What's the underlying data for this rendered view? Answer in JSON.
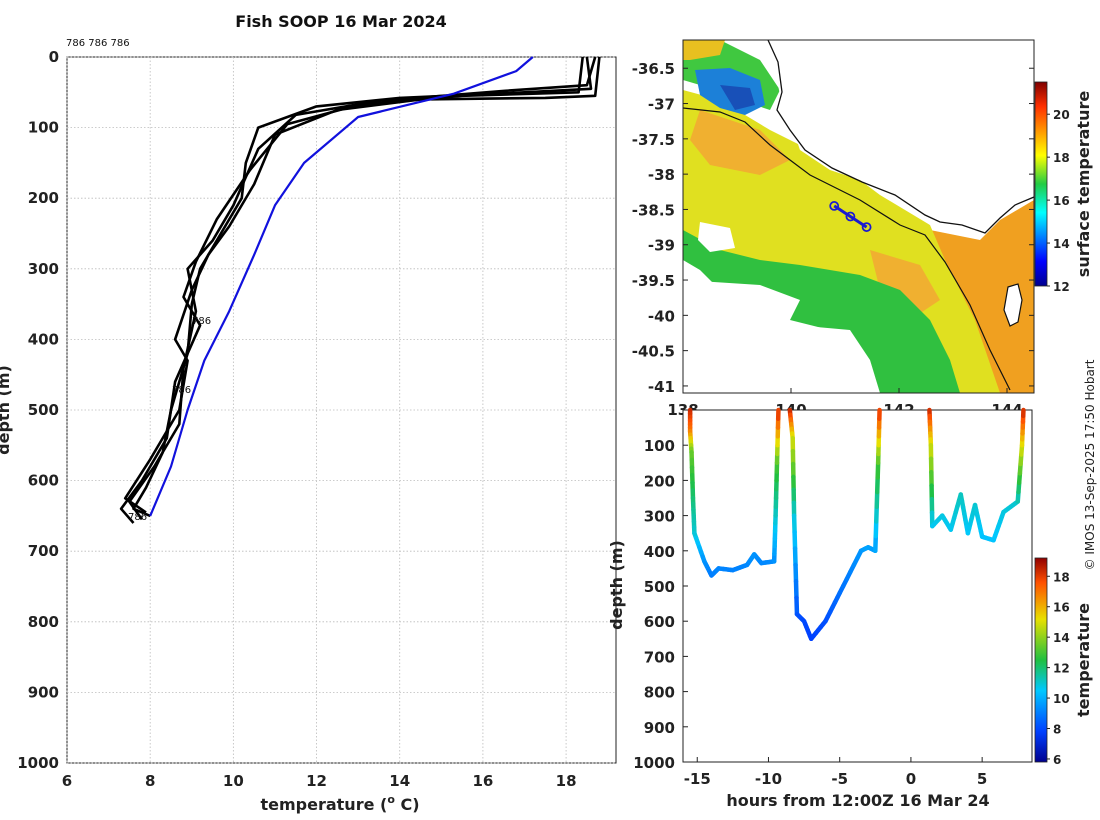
{
  "title": "Fish SOOP 16 Mar 2024",
  "watermark": "© IMOS 13-Sep-2025 17:50 Hobart",
  "chart_data": [
    {
      "id": "profile",
      "type": "line",
      "xlabel": "temperature (° C)",
      "xlabel_main": "temperature (",
      "xlabel_deg": "o",
      "xlabel_tail": " C)",
      "ylabel": "depth (m)",
      "xlim": [
        6,
        19.2
      ],
      "ylim": [
        0,
        1000
      ],
      "xticks": [
        "6",
        "8",
        "10",
        "12",
        "14",
        "16",
        "18"
      ],
      "yticks": [
        "0",
        "100",
        "200",
        "300",
        "400",
        "500",
        "600",
        "700",
        "800",
        "900",
        "1000"
      ],
      "top_label": "786 786 786",
      "profile_labels": [
        "786",
        "786",
        "786"
      ],
      "series": [
        {
          "name": "profile-1",
          "color": "#000000",
          "points": [
            [
              18.5,
              0
            ],
            [
              18.6,
              45
            ],
            [
              17.0,
              50
            ],
            [
              14.0,
              58
            ],
            [
              12.0,
              70
            ],
            [
              10.6,
              100
            ],
            [
              10.3,
              150
            ],
            [
              10.2,
              200
            ],
            [
              9.7,
              250
            ],
            [
              9.2,
              300
            ],
            [
              9.0,
              350
            ],
            [
              8.9,
              420
            ],
            [
              8.5,
              500
            ],
            [
              8.3,
              560
            ],
            [
              7.9,
              610
            ],
            [
              7.6,
              640
            ],
            [
              8.0,
              650
            ]
          ]
        },
        {
          "name": "profile-2",
          "color": "#000000",
          "points": [
            [
              18.7,
              0
            ],
            [
              18.5,
              40
            ],
            [
              16.5,
              48
            ],
            [
              13.5,
              62
            ],
            [
              11.5,
              82
            ],
            [
              10.6,
              130
            ],
            [
              10.0,
              210
            ],
            [
              9.5,
              260
            ],
            [
              8.9,
              300
            ],
            [
              9.1,
              360
            ],
            [
              8.8,
              440
            ],
            [
              8.7,
              520
            ],
            [
              8.1,
              580
            ],
            [
              7.5,
              630
            ],
            [
              7.8,
              655
            ]
          ]
        },
        {
          "name": "profile-3",
          "color": "#000000",
          "points": [
            [
              18.4,
              0
            ],
            [
              18.3,
              50
            ],
            [
              15.5,
              55
            ],
            [
              13.0,
              68
            ],
            [
              11.3,
              95
            ],
            [
              10.4,
              160
            ],
            [
              9.6,
              230
            ],
            [
              9.1,
              290
            ],
            [
              8.8,
              340
            ],
            [
              9.2,
              380
            ],
            [
              8.6,
              460
            ],
            [
              8.4,
              540
            ],
            [
              7.8,
              600
            ],
            [
              7.3,
              640
            ],
            [
              7.6,
              660
            ]
          ]
        },
        {
          "name": "profile-4",
          "color": "#000000",
          "points": [
            [
              18.8,
              0
            ],
            [
              18.7,
              55
            ],
            [
              17.5,
              58
            ],
            [
              14.5,
              60
            ],
            [
              12.5,
              75
            ],
            [
              11.0,
              110
            ],
            [
              10.5,
              180
            ],
            [
              9.9,
              240
            ],
            [
              9.4,
              280
            ],
            [
              9.0,
              330
            ],
            [
              8.6,
              400
            ],
            [
              8.9,
              430
            ],
            [
              8.7,
              500
            ],
            [
              8.0,
              570
            ],
            [
              7.4,
              625
            ],
            [
              7.9,
              645
            ]
          ]
        },
        {
          "name": "climatology",
          "color": "#1111dd",
          "points": [
            [
              17.2,
              0
            ],
            [
              16.8,
              20
            ],
            [
              15.3,
              52
            ],
            [
              13.0,
              85
            ],
            [
              11.7,
              150
            ],
            [
              11.0,
              210
            ],
            [
              10.5,
              280
            ],
            [
              9.9,
              360
            ],
            [
              9.3,
              430
            ],
            [
              8.9,
              500
            ],
            [
              8.5,
              580
            ],
            [
              8.0,
              650
            ]
          ]
        }
      ]
    },
    {
      "id": "map",
      "type": "heatmap",
      "colorbar_label": "surface temperature",
      "colorbar_range": [
        12,
        21.5
      ],
      "colorbar_ticks": [
        "12",
        "14",
        "16",
        "18",
        "20"
      ],
      "lat_ticks": [
        "-36.5",
        "-37",
        "-37.5",
        "-38",
        "-38.5",
        "-39",
        "-39.5",
        "-40",
        "-40.5",
        "-41"
      ],
      "lon_ticks": [
        "138",
        "140",
        "142",
        "144"
      ],
      "lon_range": [
        138,
        144.5
      ],
      "lat_range": [
        -36.1,
        -41.1
      ],
      "track": [
        [
          140.8,
          -38.45
        ],
        [
          141.1,
          -38.6
        ],
        [
          141.4,
          -38.75
        ]
      ]
    },
    {
      "id": "timeseries",
      "type": "line",
      "xlabel": "hours from 12:00Z 16 Mar 24",
      "ylabel": "depth (m)",
      "xlim": [
        -16,
        8.5
      ],
      "ylim": [
        0,
        1000
      ],
      "xticks": [
        "-15",
        "-10",
        "-5",
        "0",
        "5"
      ],
      "yticks": [
        "",
        "100",
        "200",
        "300",
        "400",
        "500",
        "600",
        "700",
        "800",
        "900",
        "1000"
      ],
      "colorbar_label": "temperature",
      "colorbar_range": [
        5.8,
        19.2
      ],
      "colorbar_ticks": [
        "6",
        "8",
        "10",
        "12",
        "14",
        "16",
        "18"
      ],
      "segments": [
        [
          [
            -15.5,
            0,
            18.5
          ],
          [
            -15.5,
            60,
            17
          ],
          [
            -15.4,
            120,
            13.5
          ],
          [
            -15.3,
            250,
            12
          ],
          [
            -15.2,
            350,
            11
          ],
          [
            -14.5,
            430,
            9.5
          ],
          [
            -14.0,
            470,
            9
          ],
          [
            -13.5,
            450,
            9.2
          ],
          [
            -12.5,
            455,
            9.1
          ],
          [
            -11.5,
            440,
            9.2
          ],
          [
            -11.0,
            410,
            9.5
          ],
          [
            -10.5,
            435,
            9.2
          ],
          [
            -9.6,
            430,
            9.3
          ],
          [
            -9.5,
            300,
            11
          ],
          [
            -9.4,
            150,
            13
          ],
          [
            -9.3,
            0,
            18.3
          ]
        ],
        [
          [
            -8.5,
            0,
            18.6
          ],
          [
            -8.3,
            80,
            15
          ],
          [
            -8.2,
            300,
            11
          ],
          [
            -8.0,
            580,
            8.2
          ],
          [
            -7.5,
            600,
            8.0
          ],
          [
            -7.0,
            650,
            7.8
          ],
          [
            -6.0,
            600,
            8.1
          ],
          [
            -5.0,
            520,
            8.7
          ],
          [
            -3.5,
            400,
            9.5
          ],
          [
            -3.0,
            390,
            9.8
          ],
          [
            -2.5,
            400,
            9.6
          ],
          [
            -2.3,
            150,
            13
          ],
          [
            -2.2,
            0,
            18.2
          ]
        ],
        [
          [
            1.3,
            0,
            18.5
          ],
          [
            1.4,
            100,
            15
          ],
          [
            1.5,
            330,
            10.6
          ],
          [
            2.2,
            300,
            10.8
          ],
          [
            2.8,
            340,
            10.6
          ],
          [
            3.5,
            240,
            11.2
          ],
          [
            4.0,
            350,
            10.5
          ],
          [
            4.5,
            270,
            11
          ],
          [
            5.0,
            360,
            10.4
          ],
          [
            5.8,
            370,
            10.4
          ],
          [
            6.5,
            290,
            10.8
          ],
          [
            7.5,
            260,
            11
          ],
          [
            7.8,
            100,
            15
          ],
          [
            7.9,
            0,
            18.4
          ]
        ]
      ]
    }
  ]
}
